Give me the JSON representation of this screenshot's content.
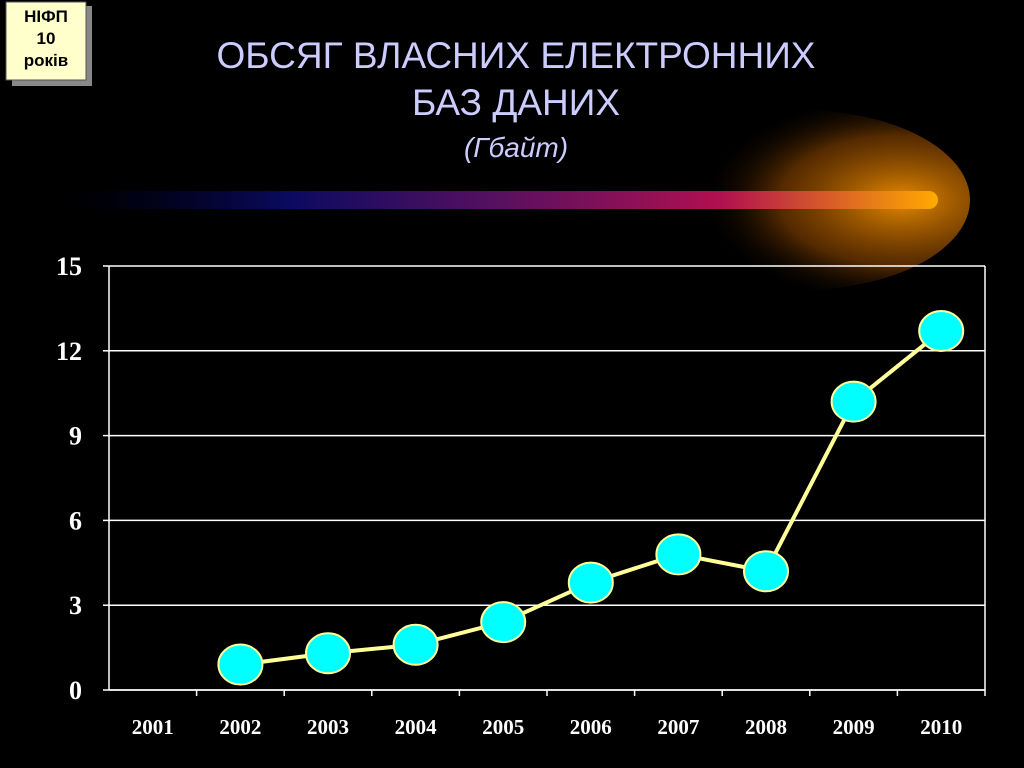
{
  "badge": {
    "lines": [
      "НІФП",
      "10",
      "років"
    ]
  },
  "chart_data": {
    "type": "line",
    "title": [
      "ОБСЯГ ВЛАСНИХ ЕЛЕКТРОННИХ",
      "БАЗ ДАНИХ"
    ],
    "subtitle": "(Гбайт)",
    "categories": [
      "2001",
      "2002",
      "2003",
      "2004",
      "2005",
      "2006",
      "2007",
      "2008",
      "2009",
      "2010"
    ],
    "series": [
      {
        "name": "Гбайт",
        "color": "#ffff99",
        "marker_color": "#00ffff",
        "values": [
          null,
          0.9,
          1.3,
          1.6,
          2.4,
          3.8,
          4.8,
          4.2,
          10.2,
          12.7
        ]
      }
    ],
    "ylim": [
      0,
      15
    ],
    "yticks": [
      0,
      3,
      6,
      9,
      12,
      15
    ],
    "grid": true
  }
}
